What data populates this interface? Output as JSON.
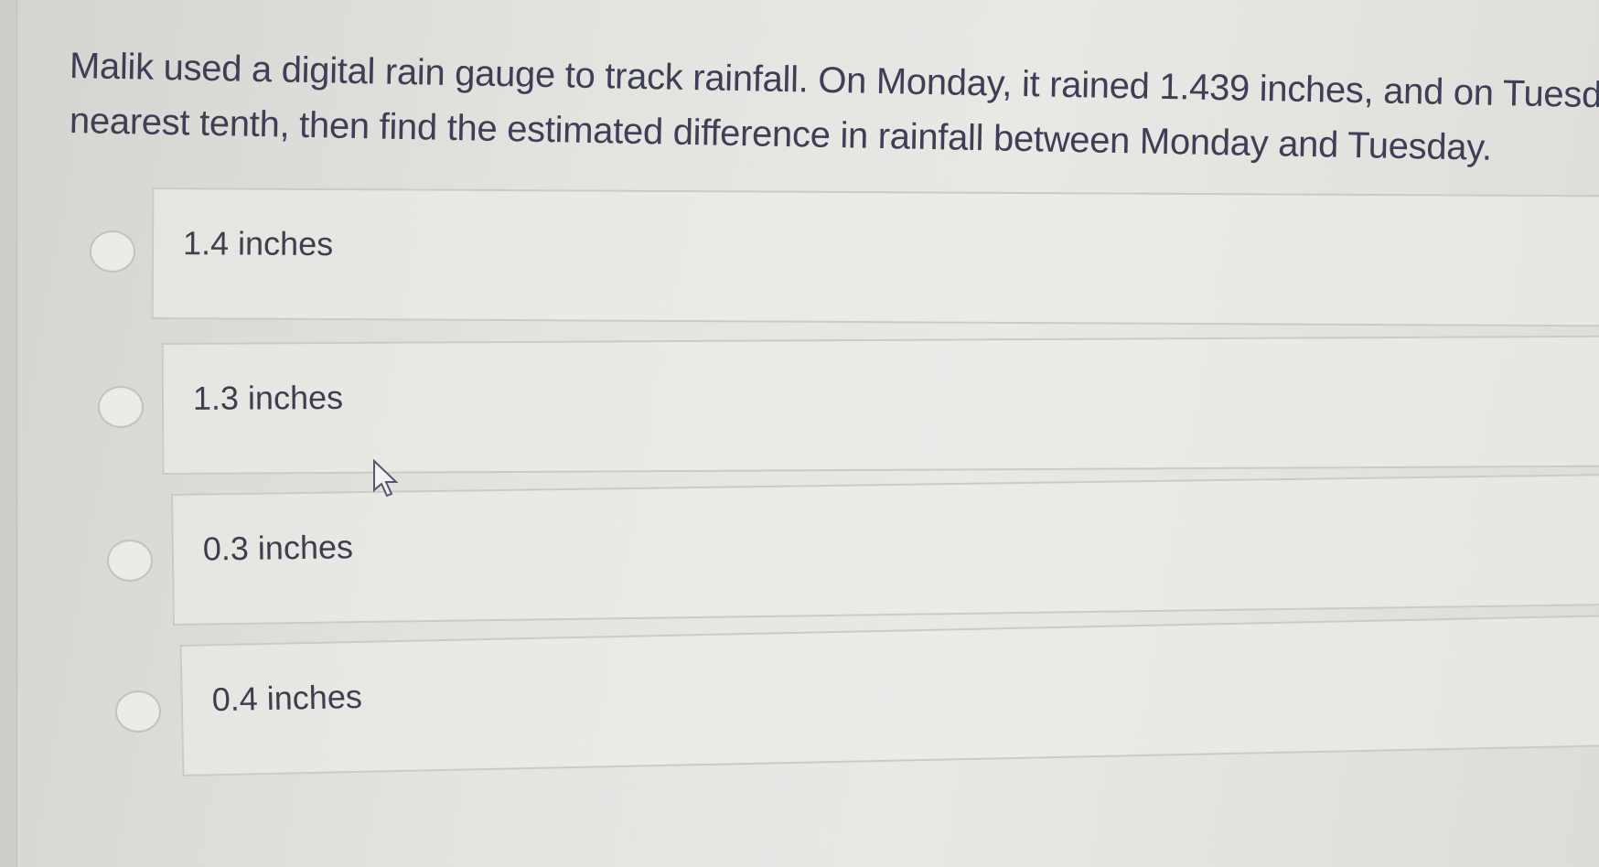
{
  "question": {
    "line1": "Malik used a digital rain gauge to track rainfall. On Monday, it rained 1.439 inches, and on Tuesday",
    "line2": "nearest tenth, then find the estimated difference in rainfall between Monday and Tuesday."
  },
  "options": [
    {
      "label": "1.4 inches",
      "selected": false
    },
    {
      "label": "1.3 inches",
      "selected": false
    },
    {
      "label": "0.3 inches",
      "selected": false
    },
    {
      "label": "0.4 inches",
      "selected": false
    }
  ]
}
